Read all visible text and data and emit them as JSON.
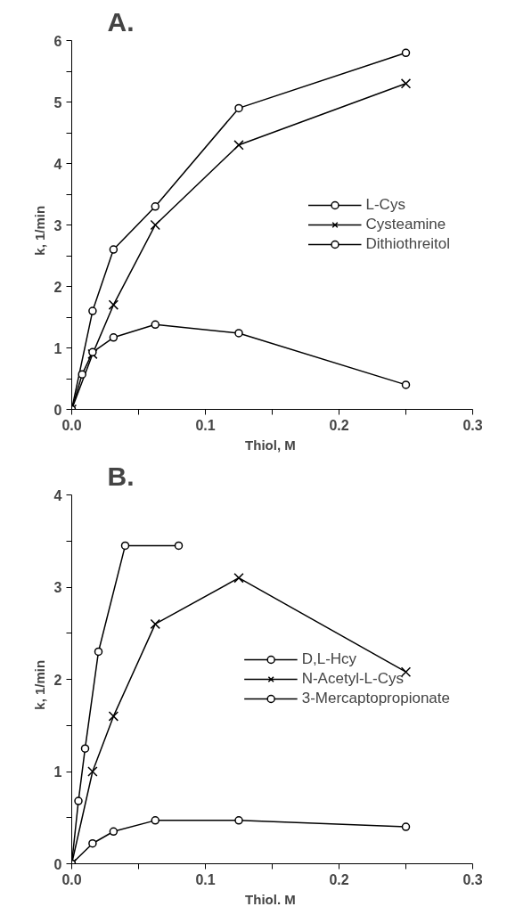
{
  "chart_data": [
    {
      "type": "line",
      "title": "A.",
      "xlabel": "Thiol,  M",
      "ylabel": "k,    1/min",
      "xlim": [
        0,
        0.3
      ],
      "xticks": [
        {
          "value": 0,
          "label": "0.0"
        },
        {
          "value": 0.05,
          "label": null
        },
        {
          "value": 0.1,
          "label": "0.1"
        },
        {
          "value": 0.15,
          "label": null
        },
        {
          "value": 0.2,
          "label": "0.2"
        },
        {
          "value": 0.25,
          "label": null
        },
        {
          "value": 0.3,
          "label": "0.3"
        }
      ],
      "ylim": [
        0,
        6
      ],
      "yticks": [
        0,
        {
          "value": 0.5,
          "label": null
        },
        1,
        {
          "value": 1.5,
          "label": null
        },
        2,
        {
          "value": 2.5,
          "label": null
        },
        3,
        {
          "value": 3.5,
          "label": null
        },
        4,
        {
          "value": 4.5,
          "label": null
        },
        5,
        {
          "value": 5.5,
          "label": null
        },
        6
      ],
      "grid": false,
      "legend": "right",
      "line_style": "solid",
      "series": [
        {
          "name": "L-Cys",
          "color": "#000000",
          "marker": "circle",
          "x": [
            0,
            0.0156,
            0.03125,
            0.0625,
            0.125,
            0.25
          ],
          "values": [
            0,
            1.6,
            2.6,
            3.3,
            4.9,
            5.8
          ]
        },
        {
          "name": "Cysteamine",
          "color": "#000000",
          "marker": "cross",
          "x": [
            0,
            0.0156,
            0.03125,
            0.0625,
            0.125,
            0.25
          ],
          "values": [
            0,
            0.9,
            1.7,
            3.0,
            4.3,
            5.3
          ]
        },
        {
          "name": "Dithiothreitol",
          "color": "#000000",
          "marker": "circle",
          "x": [
            0,
            0.0078,
            0.0156,
            0.03125,
            0.0625,
            0.125,
            0.25
          ],
          "values": [
            0,
            0.57,
            0.93,
            1.17,
            1.38,
            1.24,
            0.4
          ]
        }
      ]
    },
    {
      "type": "line",
      "title": "B.",
      "xlabel": "Thiol.  M",
      "ylabel": "k,    1/min",
      "xlim": [
        0,
        0.3
      ],
      "xticks": [
        {
          "value": 0,
          "label": "0.0"
        },
        {
          "value": 0.05,
          "label": null
        },
        {
          "value": 0.1,
          "label": "0.1"
        },
        {
          "value": 0.15,
          "label": null
        },
        {
          "value": 0.2,
          "label": "0.2"
        },
        {
          "value": 0.25,
          "label": null
        },
        {
          "value": 0.3,
          "label": "0.3"
        }
      ],
      "ylim": [
        0,
        4
      ],
      "yticks": [
        0,
        {
          "value": 0.5,
          "label": null
        },
        1,
        {
          "value": 1.5,
          "label": null
        },
        2,
        {
          "value": 2.5,
          "label": null
        },
        3,
        {
          "value": 3.5,
          "label": null
        },
        4
      ],
      "grid": false,
      "legend": "right",
      "line_style": "solid",
      "series": [
        {
          "name": "D,L-Hcy",
          "color": "#000000",
          "marker": "circle",
          "x": [
            0,
            0.005,
            0.01,
            0.02,
            0.04,
            0.08
          ],
          "values": [
            0,
            0.68,
            1.25,
            2.3,
            3.45,
            3.45
          ]
        },
        {
          "name": "N-Acetyl-L-Cys",
          "color": "#000000",
          "marker": "cross",
          "x": [
            0,
            0.0156,
            0.03125,
            0.0625,
            0.125,
            0.25
          ],
          "values": [
            0,
            1.0,
            1.6,
            2.6,
            3.1,
            2.08
          ]
        },
        {
          "name": "3-Mercaptopropionate",
          "color": "#000000",
          "marker": "circle",
          "x": [
            0,
            0.0156,
            0.03125,
            0.0625,
            0.125,
            0.25
          ],
          "values": [
            0,
            0.22,
            0.35,
            0.47,
            0.47,
            0.4
          ]
        }
      ]
    }
  ]
}
